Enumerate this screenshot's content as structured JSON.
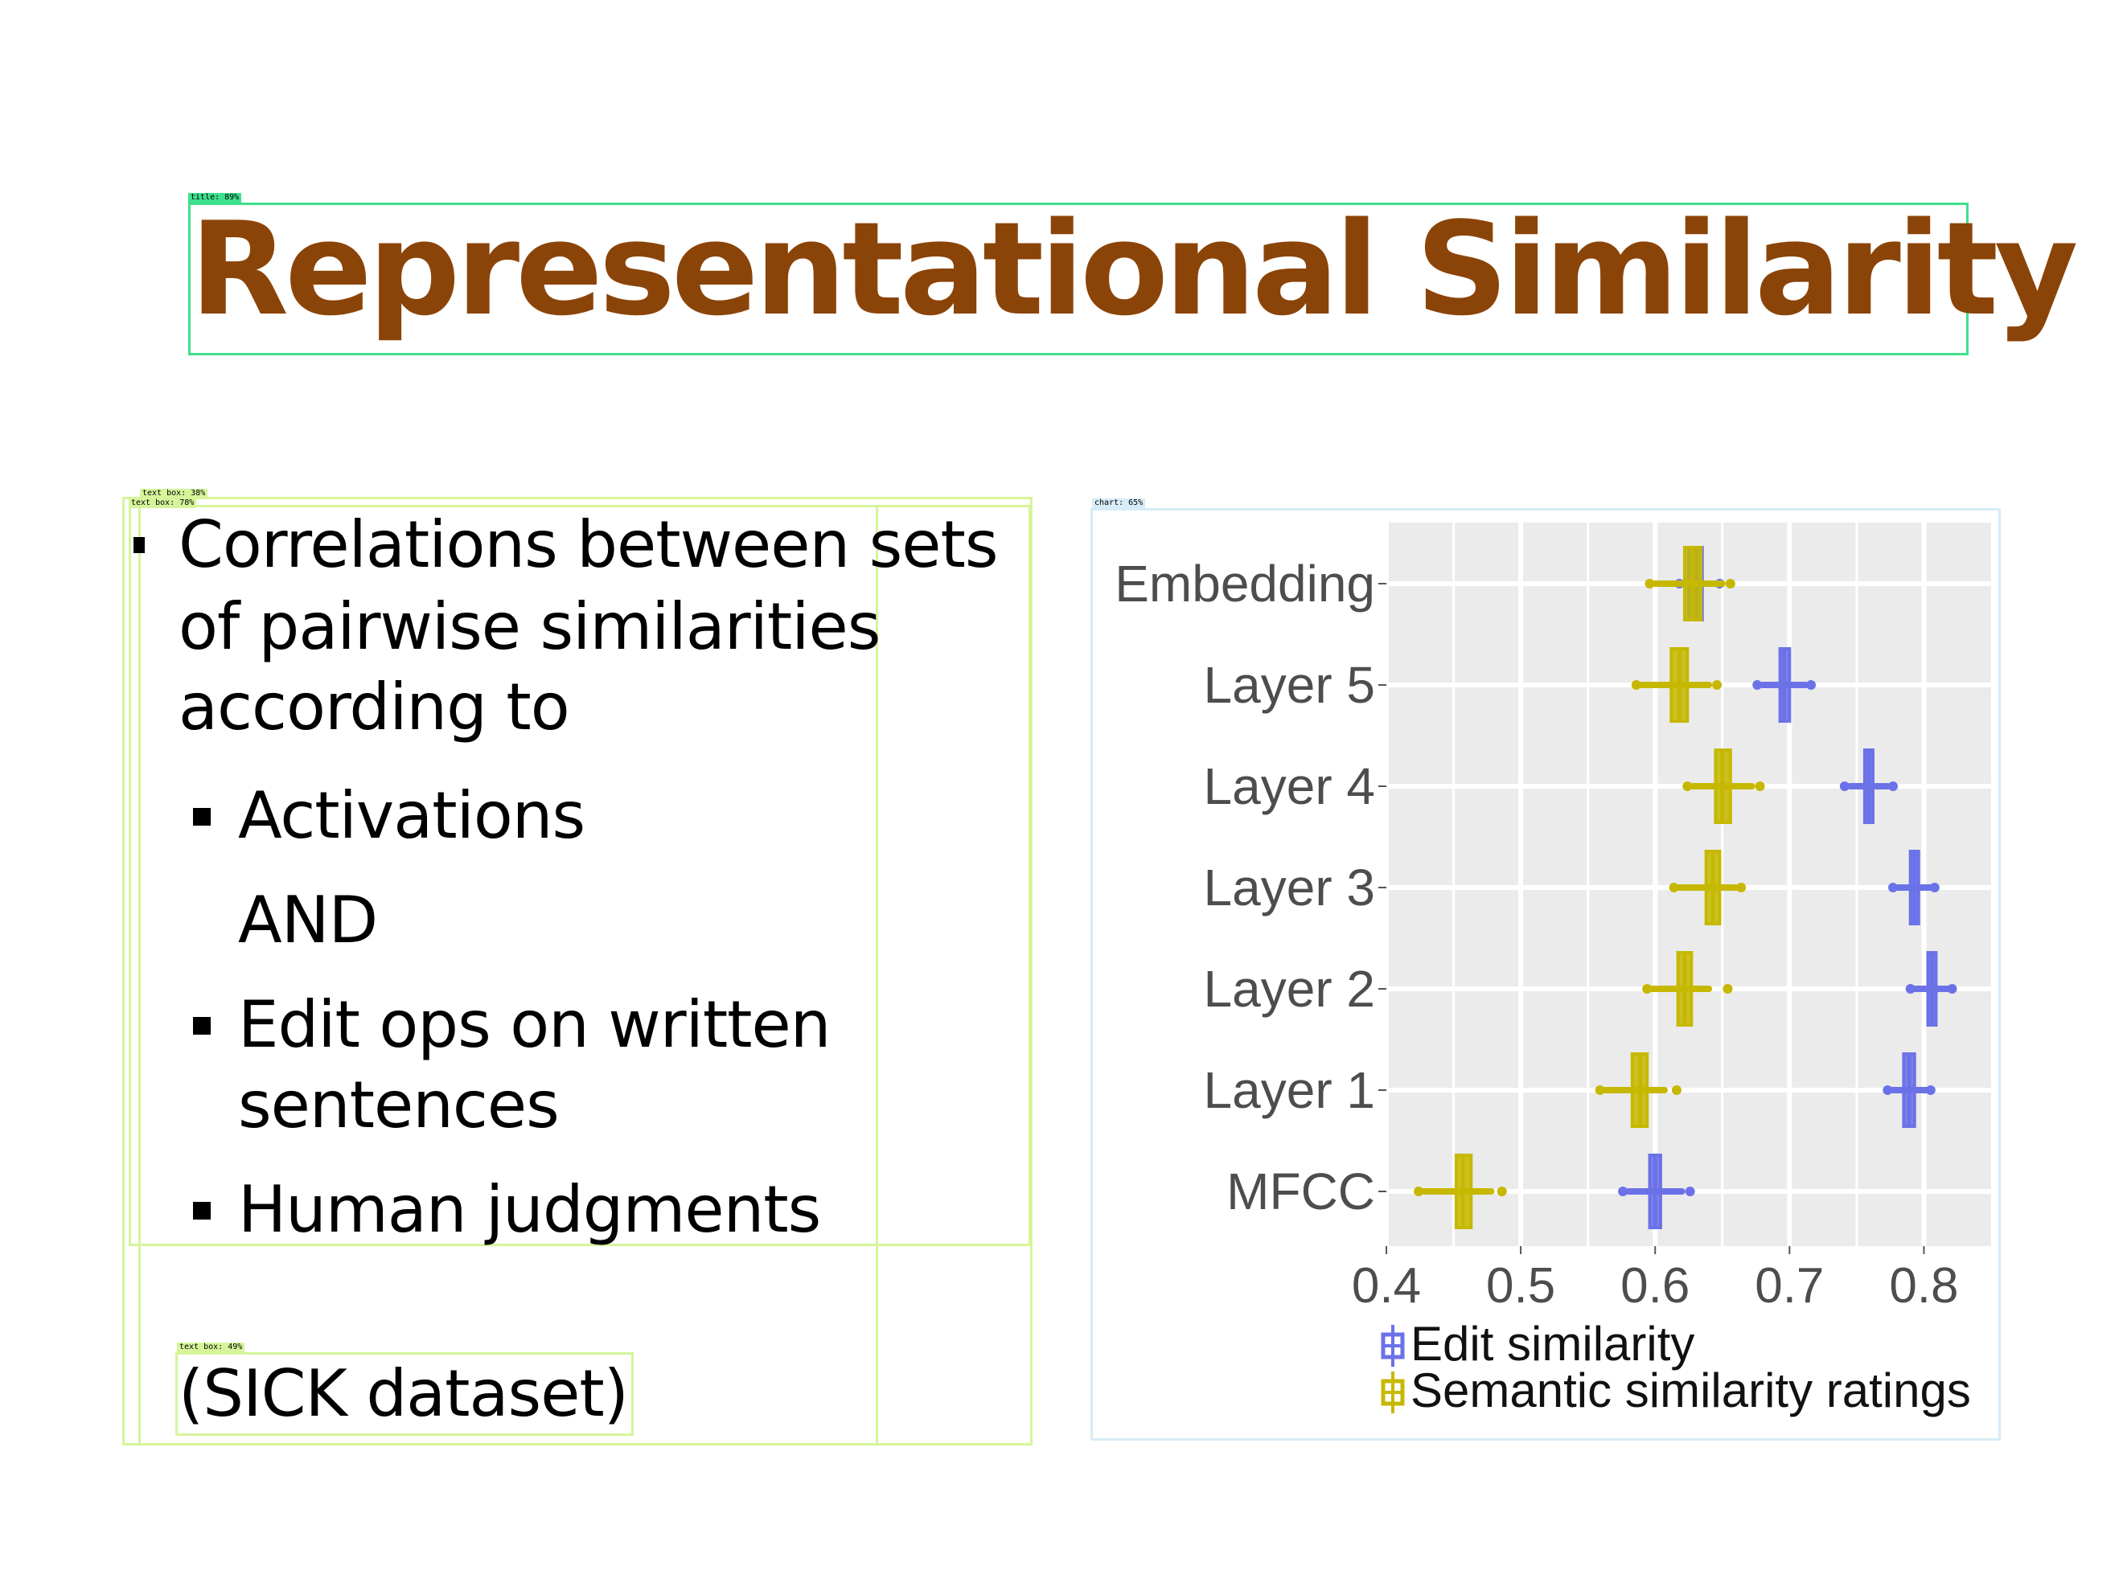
{
  "title": "Representational Similarity",
  "overlay_tags": {
    "title": "title: 89%",
    "textbox_a": "text box: 38%",
    "textbox_b": "text box: 78%",
    "textbox_c": "text box: 49%",
    "chart": "chart: 65%"
  },
  "bullets": {
    "main_line1": "Correlations between sets",
    "main_line2": "of pairwise similarities",
    "main_line3": "according to",
    "sub1": "Activations",
    "and": "AND",
    "sub2_line1": "Edit ops on written",
    "sub2_line2": "sentences",
    "sub3": "Human judgments"
  },
  "footnote": "(SICK dataset)",
  "colors": {
    "title": "#8b4408",
    "edit": "#6b72e8",
    "semantic": "#c6b800",
    "panel": "#ebebeb"
  },
  "chart_data": {
    "type": "boxplot",
    "orientation": "horizontal",
    "categories": [
      "Embedding",
      "Layer 5",
      "Layer 4",
      "Layer 3",
      "Layer 2",
      "Layer 1",
      "MFCC"
    ],
    "xlim": [
      0.4,
      0.85
    ],
    "xticks": [
      "0.4",
      "0.5",
      "0.6",
      "0.7",
      "0.8"
    ],
    "grid": true,
    "legend_position": "bottom",
    "series": [
      {
        "name": "Edit similarity",
        "color": "#6b72e8",
        "boxes": [
          {
            "q1": 0.625,
            "median": 0.63,
            "q3": 0.635,
            "wlo": 0.62,
            "whi": 0.645,
            "olo": 0.618,
            "ohi": 0.648
          },
          {
            "q1": 0.693,
            "median": 0.696,
            "q3": 0.7,
            "wlo": 0.68,
            "whi": 0.712,
            "olo": 0.676,
            "ohi": 0.716
          },
          {
            "q1": 0.756,
            "median": 0.759,
            "q3": 0.762,
            "wlo": 0.745,
            "whi": 0.773,
            "olo": 0.741,
            "ohi": 0.777
          },
          {
            "q1": 0.79,
            "median": 0.793,
            "q3": 0.796,
            "wlo": 0.78,
            "whi": 0.805,
            "olo": 0.777,
            "ohi": 0.808
          },
          {
            "q1": 0.803,
            "median": 0.806,
            "q3": 0.809,
            "wlo": 0.793,
            "whi": 0.818,
            "olo": 0.79,
            "ohi": 0.821
          },
          {
            "q1": 0.785,
            "median": 0.789,
            "q3": 0.793,
            "wlo": 0.776,
            "whi": 0.802,
            "olo": 0.773,
            "ohi": 0.805
          },
          {
            "q1": 0.596,
            "median": 0.6,
            "q3": 0.604,
            "wlo": 0.58,
            "whi": 0.62,
            "olo": 0.576,
            "ohi": 0.626
          }
        ]
      },
      {
        "name": "Semantic similarity ratings",
        "color": "#c6b800",
        "boxes": [
          {
            "q1": 0.622,
            "median": 0.628,
            "q3": 0.634,
            "wlo": 0.6,
            "whi": 0.65,
            "olo": 0.596,
            "ohi": 0.656
          },
          {
            "q1": 0.612,
            "median": 0.618,
            "q3": 0.624,
            "wlo": 0.59,
            "whi": 0.64,
            "olo": 0.586,
            "ohi": 0.646
          },
          {
            "q1": 0.645,
            "median": 0.65,
            "q3": 0.656,
            "wlo": 0.628,
            "whi": 0.672,
            "olo": 0.624,
            "ohi": 0.678
          },
          {
            "q1": 0.638,
            "median": 0.643,
            "q3": 0.648,
            "wlo": 0.618,
            "whi": 0.66,
            "olo": 0.614,
            "ohi": 0.664
          },
          {
            "q1": 0.617,
            "median": 0.622,
            "q3": 0.627,
            "wlo": 0.598,
            "whi": 0.64,
            "olo": 0.594,
            "ohi": 0.654
          },
          {
            "q1": 0.583,
            "median": 0.589,
            "q3": 0.594,
            "wlo": 0.563,
            "whi": 0.607,
            "olo": 0.559,
            "ohi": 0.616
          },
          {
            "q1": 0.452,
            "median": 0.457,
            "q3": 0.463,
            "wlo": 0.428,
            "whi": 0.478,
            "olo": 0.424,
            "ohi": 0.486
          }
        ]
      }
    ]
  }
}
